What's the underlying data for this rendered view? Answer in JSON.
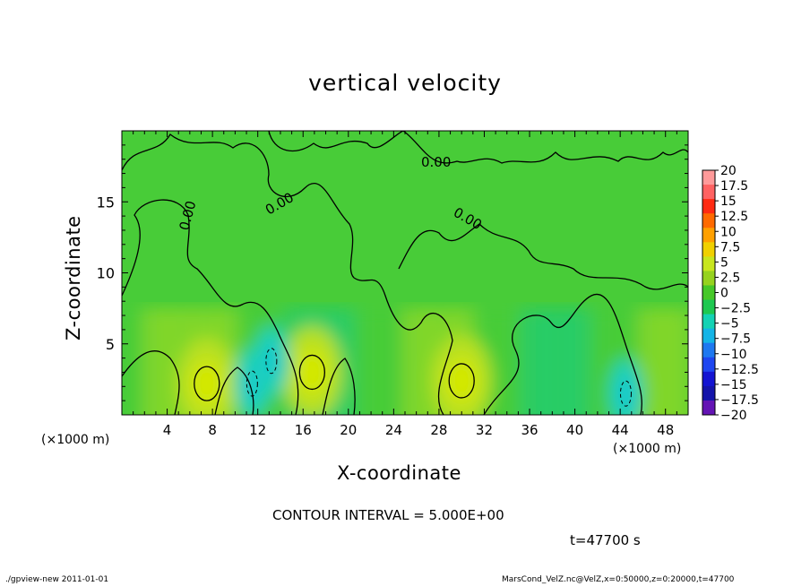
{
  "footer": {
    "program": "./gpview-new   2011-01-01",
    "source": "MarsCond_VelZ.nc@VelZ,x=0:50000,z=0:20000,t=47700"
  },
  "annotations": {
    "contour_interval": "CONTOUR INTERVAL = 5.000E+00",
    "time": "t=47700 s",
    "contour_label": "0.00"
  },
  "chart_data": {
    "type": "heatmap",
    "title": "vertical velocity",
    "xlabel": "X-coordinate",
    "ylabel": "Z-coordinate",
    "x_unit_label": "(×1000 m)",
    "xlim": [
      0,
      50
    ],
    "ylim": [
      0,
      20
    ],
    "x_ticks": [
      "4",
      "8",
      "12",
      "16",
      "20",
      "24",
      "28",
      "32",
      "36",
      "40",
      "44",
      "48"
    ],
    "y_ticks": [
      "5",
      "10",
      "15"
    ],
    "x_tick_values": [
      4,
      8,
      12,
      16,
      20,
      24,
      28,
      32,
      36,
      40,
      44,
      48
    ],
    "y_tick_values": [
      5,
      10,
      15
    ],
    "colorbar": {
      "labels": [
        "20",
        "17.5",
        "15",
        "12.5",
        "10",
        "7.5",
        "5",
        "2.5",
        "0",
        "−2.5",
        "−5",
        "−7.5",
        "−10",
        "−12.5",
        "−15",
        "−17.5",
        "−20"
      ],
      "colors": [
        "#ff9a9a",
        "#ff6262",
        "#ff2a12",
        "#ff6a00",
        "#ffa000",
        "#f0d000",
        "#c8e61e",
        "#96d21e",
        "#46c828",
        "#1ec850",
        "#14d2b4",
        "#14b4e6",
        "#1e78f0",
        "#1e46f0",
        "#1414d2",
        "#1414aa",
        "#6414b4"
      ]
    },
    "features": [
      {
        "kind": "updraft",
        "x": 7.5,
        "z": 2.2,
        "value": 5
      },
      {
        "kind": "updraft",
        "x": 16.8,
        "z": 3.0,
        "value": 5
      },
      {
        "kind": "updraft",
        "x": 30.0,
        "z": 2.4,
        "value": 5
      },
      {
        "kind": "downdraft",
        "x": 11.5,
        "z": 2.2,
        "value": -5
      },
      {
        "kind": "downdraft",
        "x": 13.2,
        "z": 3.8,
        "value": -5
      },
      {
        "kind": "downdraft",
        "x": 44.5,
        "z": 1.5,
        "value": -5
      }
    ]
  }
}
